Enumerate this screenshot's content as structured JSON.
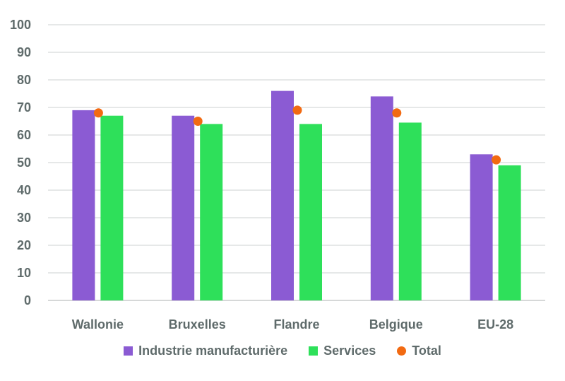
{
  "chart_data": {
    "type": "bar",
    "title": "",
    "xlabel": "",
    "ylabel": "",
    "ylim": [
      0,
      100
    ],
    "yticks": [
      "0",
      "10",
      "20",
      "30",
      "40",
      "50",
      "60",
      "70",
      "80",
      "90",
      "100"
    ],
    "grid": true,
    "legend_position": "bottom",
    "categories": [
      "Wallonie",
      "Bruxelles",
      "Flandre",
      "Belgique",
      "EU-28"
    ],
    "series": [
      {
        "name": "Industrie manufacturière",
        "kind": "bar",
        "color": "#8b5bd3",
        "values": [
          69,
          67,
          76,
          74,
          53
        ]
      },
      {
        "name": "Services",
        "kind": "bar",
        "color": "#2ee05a",
        "values": [
          67,
          64,
          64,
          64.5,
          49
        ]
      },
      {
        "name": "Total",
        "kind": "marker",
        "color": "#f26a12",
        "values": [
          68,
          65,
          69,
          68,
          51
        ]
      }
    ]
  }
}
